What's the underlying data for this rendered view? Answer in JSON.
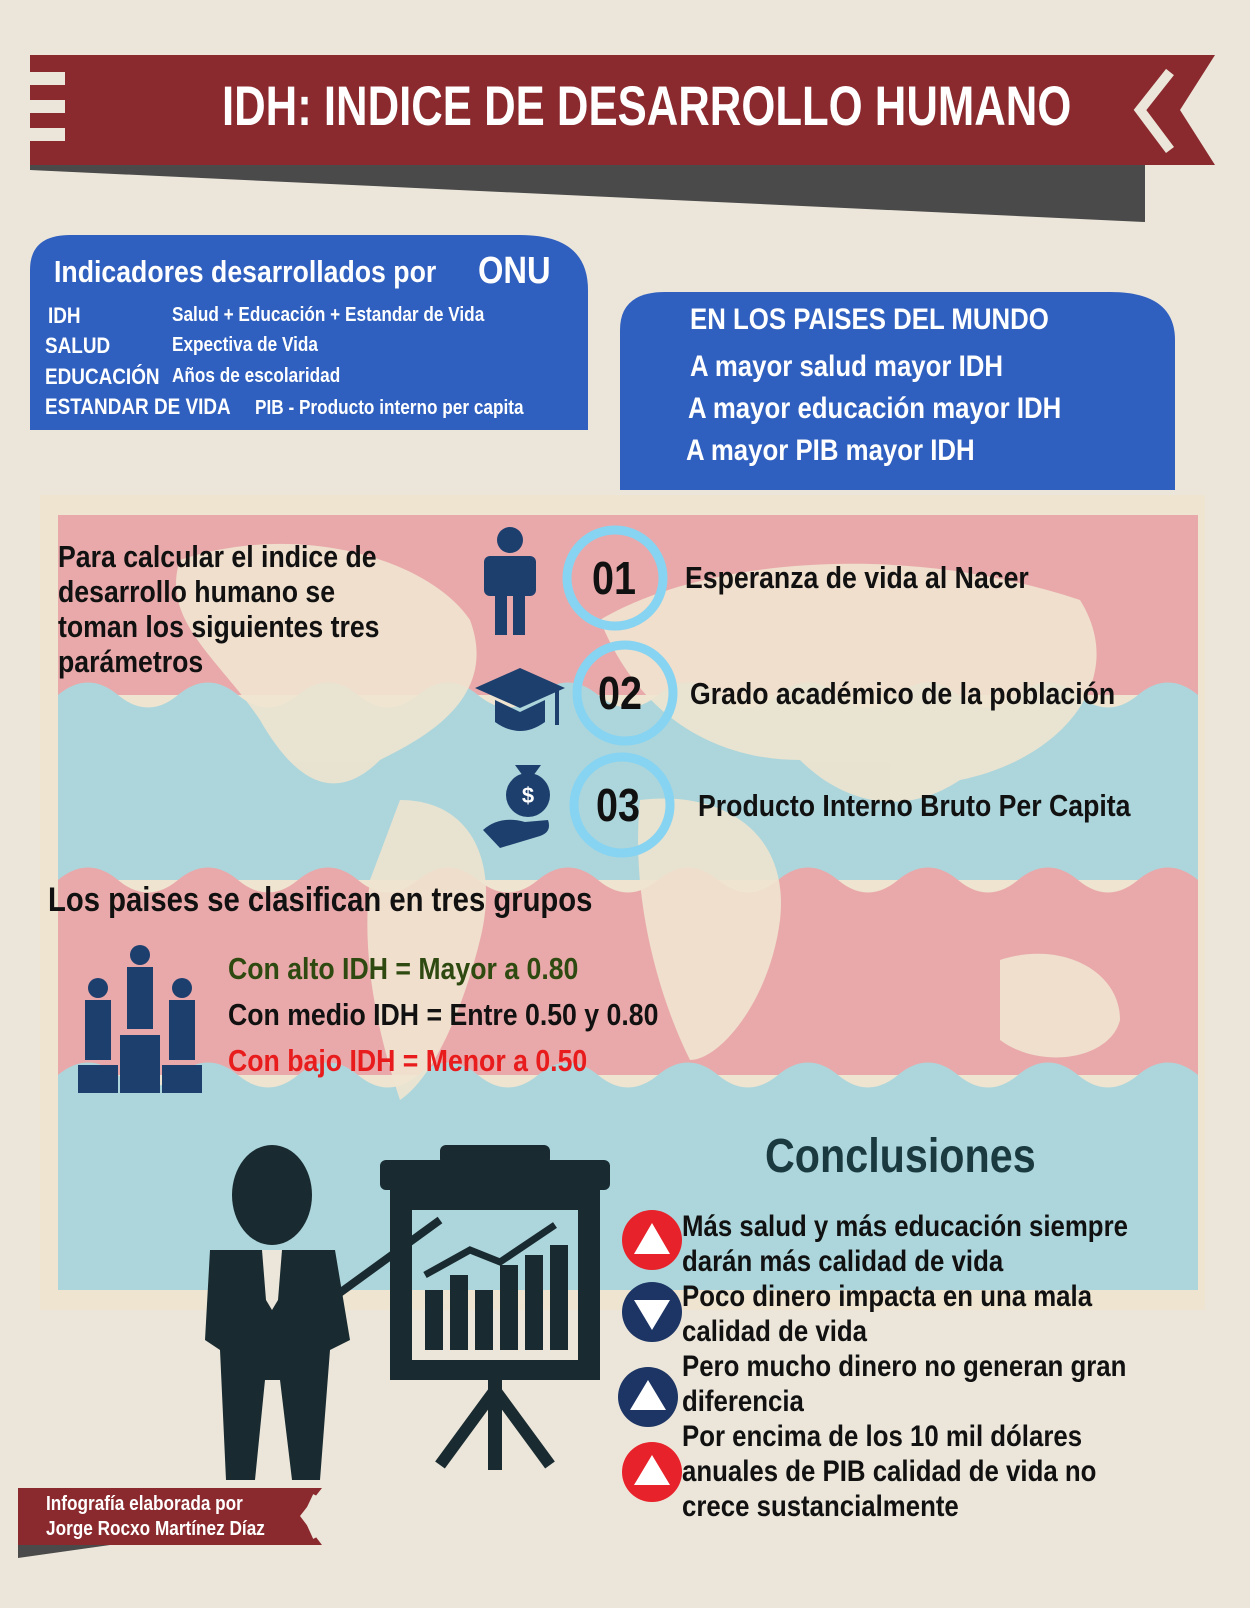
{
  "header": {
    "title": "IDH: INDICE DE DESARROLLO HUMANO"
  },
  "indicators": {
    "heading": "Indicadores desarrollados por",
    "organization": "ONU",
    "rows": [
      [
        "IDH",
        "Salud + Educación + Estandar de Vida"
      ],
      [
        "SALUD",
        "Expectiva de Vida"
      ],
      [
        "EDUCACIÓN",
        "Años de escolaridad"
      ],
      [
        "ESTANDAR DE VIDA",
        "PIB - Producto interno per capita"
      ]
    ]
  },
  "world": {
    "heading": "EN LOS PAISES DEL MUNDO",
    "lines": [
      "A mayor salud mayor IDH",
      "A mayor educación mayor IDH",
      "A mayor PIB mayor IDH"
    ]
  },
  "parameters": {
    "intro": [
      "Para calcular el indice de",
      "desarrollo humano se",
      "toman los siguientes tres",
      "parámetros"
    ],
    "items": [
      {
        "number": "01",
        "label": "Esperanza de vida al Nacer"
      },
      {
        "number": "02",
        "label": "Grado académico de la población"
      },
      {
        "number": "03",
        "label": "Producto Interno Bruto Per Capita"
      }
    ]
  },
  "groups": {
    "heading": "Los paises se clasifican en tres grupos",
    "items": [
      "Con alto IDH = Mayor a 0.80",
      "Con medio IDH = Entre 0.50 y 0.80",
      "Con bajo IDH = Menor a 0.50"
    ]
  },
  "conclusions": {
    "title": "Conclusiones",
    "items": [
      [
        "Más salud y más educación siempre",
        "darán más calidad de vida"
      ],
      [
        "Poco dinero impacta en una mala",
        "calidad de vida"
      ],
      [
        "Pero mucho dinero no generan gran",
        "diferencia"
      ],
      [
        "Por encima de los 10 mil dólares",
        "anuales de PIB calidad de vida no",
        "crece sustancialmente"
      ]
    ]
  },
  "credit": {
    "lines": [
      "Infografía elaborada por",
      "Jorge Rocxo Martínez Díaz"
    ]
  }
}
